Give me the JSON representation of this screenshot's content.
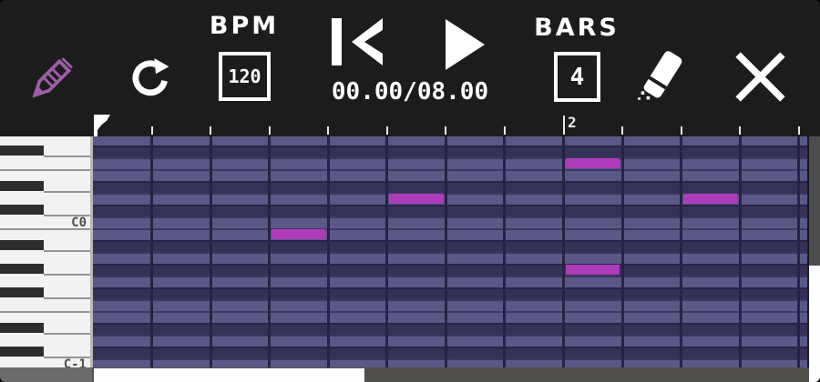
{
  "toolbar": {
    "pencil_button": {
      "icon": "pencil-icon"
    },
    "redo_button": {
      "icon": "redo-icon"
    },
    "bpm": {
      "label": "BPM",
      "value": "120"
    },
    "skip_start_button": {
      "icon": "skip-to-start-icon"
    },
    "play_button": {
      "icon": "play-icon"
    },
    "time_display": "00.00/08.00",
    "bars": {
      "label": "BARS",
      "value": "4"
    },
    "eraser_button": {
      "icon": "eraser-icon"
    },
    "close_button": {
      "icon": "close-icon"
    }
  },
  "ruler": {
    "bar_label": "2",
    "bar_tick_index": 8,
    "tick_count": 12
  },
  "keyboard": {
    "labels": [
      {
        "text": "C0",
        "row": 7
      },
      {
        "text": "C-1",
        "row": 19
      }
    ]
  },
  "grid": {
    "rows": [
      {
        "note": "G0",
        "key": "white"
      },
      {
        "note": "F#0",
        "key": "black"
      },
      {
        "note": "F0",
        "key": "white"
      },
      {
        "note": "E0",
        "key": "white",
        "line_above": true
      },
      {
        "note": "D#0",
        "key": "black"
      },
      {
        "note": "D0",
        "key": "white"
      },
      {
        "note": "C#0",
        "key": "black"
      },
      {
        "note": "C0",
        "key": "white"
      },
      {
        "note": "B-1",
        "key": "white",
        "line_above": true
      },
      {
        "note": "A#-1",
        "key": "black"
      },
      {
        "note": "A-1",
        "key": "white"
      },
      {
        "note": "G#-1",
        "key": "black"
      },
      {
        "note": "G-1",
        "key": "white"
      },
      {
        "note": "F#-1",
        "key": "black"
      },
      {
        "note": "F-1",
        "key": "white"
      },
      {
        "note": "E-1",
        "key": "white",
        "line_above": true
      },
      {
        "note": "D#-1",
        "key": "black"
      },
      {
        "note": "D-1",
        "key": "white"
      },
      {
        "note": "C#-1",
        "key": "black"
      },
      {
        "note": "C-1",
        "key": "white"
      }
    ],
    "columns": 12,
    "notes": [
      {
        "pitch": "B-1",
        "row": 8,
        "col": 3
      },
      {
        "pitch": "D0",
        "row": 5,
        "col": 5
      },
      {
        "pitch": "F0",
        "row": 2,
        "col": 8
      },
      {
        "pitch": "G#-1",
        "row": 11,
        "col": 8
      },
      {
        "pitch": "D0",
        "row": 5,
        "col": 10
      }
    ]
  },
  "scrollbars": {
    "horizontal": {
      "thumb_start": 103,
      "thumb_end": 400
    },
    "vertical": {
      "thumb_start": 292,
      "thumb_end": 420
    }
  },
  "colors": {
    "toolbar_bg": "#1c1c1c",
    "icon": "#ffffff",
    "pencil": "#9c5fa5",
    "row_light": "#5a5886",
    "row_dark": "#353258",
    "grid_line": "#262344",
    "note": "#ae3cba",
    "key_white": "#f2f2f2",
    "key_black": "#2d2d2d",
    "key_label": "#4f4f4f",
    "scroll_track": "#52504b",
    "scroll_thumb": "#fdfdfd",
    "scroll_corner": "#6b6b6b",
    "vscroll_track": "#4e4e4e"
  }
}
